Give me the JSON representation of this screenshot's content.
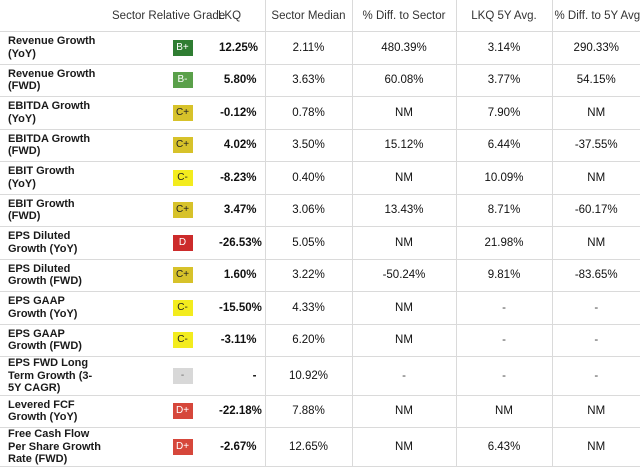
{
  "header": {
    "name": "",
    "grade": "Sector Relative Grade",
    "lkq": "LKQ",
    "median": "Sector Median",
    "diff_sector": "% Diff. to Sector",
    "avg5y": "LKQ 5Y Avg.",
    "diff_avg": "% Diff. to 5Y Avg."
  },
  "rows": [
    {
      "name": "Revenue Growth (YoY)",
      "grade": "B+",
      "grade_color": "#2f7d32",
      "lkq": "12.25%",
      "median": "2.11%",
      "diff_sector": "480.39%",
      "avg5y": "3.14%",
      "diff_avg": "290.33%"
    },
    {
      "name": "Revenue Growth (FWD)",
      "grade": "B-",
      "grade_color": "#5aa04a",
      "lkq": "5.80%",
      "median": "3.63%",
      "diff_sector": "60.08%",
      "avg5y": "3.77%",
      "diff_avg": "54.15%"
    },
    {
      "name": "EBITDA Growth (YoY)",
      "grade": "C+",
      "grade_color": "#d7c22a",
      "lkq": "-0.12%",
      "median": "0.78%",
      "diff_sector": "NM",
      "avg5y": "7.90%",
      "diff_avg": "NM"
    },
    {
      "name": "EBITDA Growth (FWD)",
      "grade": "C+",
      "grade_color": "#d7c22a",
      "lkq": "4.02%",
      "median": "3.50%",
      "diff_sector": "15.12%",
      "avg5y": "6.44%",
      "diff_avg": "-37.55%"
    },
    {
      "name": "EBIT Growth (YoY)",
      "grade": "C-",
      "grade_color": "#f3ec1e",
      "lkq": "-8.23%",
      "median": "0.40%",
      "diff_sector": "NM",
      "avg5y": "10.09%",
      "diff_avg": "NM"
    },
    {
      "name": "EBIT Growth (FWD)",
      "grade": "C+",
      "grade_color": "#d7c22a",
      "lkq": "3.47%",
      "median": "3.06%",
      "diff_sector": "13.43%",
      "avg5y": "8.71%",
      "diff_avg": "-60.17%"
    },
    {
      "name": "EPS Diluted Growth (YoY)",
      "grade": "D",
      "grade_color": "#cc2b2b",
      "lkq": "-26.53%",
      "median": "5.05%",
      "diff_sector": "NM",
      "avg5y": "21.98%",
      "diff_avg": "NM"
    },
    {
      "name": "EPS Diluted Growth (FWD)",
      "grade": "C+",
      "grade_color": "#d7c22a",
      "lkq": "1.60%",
      "median": "3.22%",
      "diff_sector": "-50.24%",
      "avg5y": "9.81%",
      "diff_avg": "-83.65%"
    },
    {
      "name": "EPS GAAP Growth (YoY)",
      "grade": "C-",
      "grade_color": "#f3ec1e",
      "lkq": "-15.50%",
      "median": "4.33%",
      "diff_sector": "NM",
      "avg5y": "-",
      "diff_avg": "-"
    },
    {
      "name": "EPS GAAP Growth (FWD)",
      "grade": "C-",
      "grade_color": "#f3ec1e",
      "lkq": "-3.11%",
      "median": "6.20%",
      "diff_sector": "NM",
      "avg5y": "-",
      "diff_avg": "-"
    },
    {
      "name": "EPS FWD Long Term Growth (3-5Y CAGR)",
      "grade": "-",
      "grade_color": "#d8d8d8",
      "lkq": "-",
      "median": "10.92%",
      "diff_sector": "-",
      "avg5y": "-",
      "diff_avg": "-"
    },
    {
      "name": "Levered FCF Growth (YoY)",
      "grade": "D+",
      "grade_color": "#d6473b",
      "lkq": "-22.18%",
      "median": "7.88%",
      "diff_sector": "NM",
      "avg5y": "NM",
      "diff_avg": "NM"
    },
    {
      "name": "Free Cash Flow Per Share Growth Rate (FWD)",
      "grade": "D+",
      "grade_color": "#d6473b",
      "lkq": "-2.67%",
      "median": "12.65%",
      "diff_sector": "NM",
      "avg5y": "6.43%",
      "diff_avg": "NM"
    }
  ]
}
